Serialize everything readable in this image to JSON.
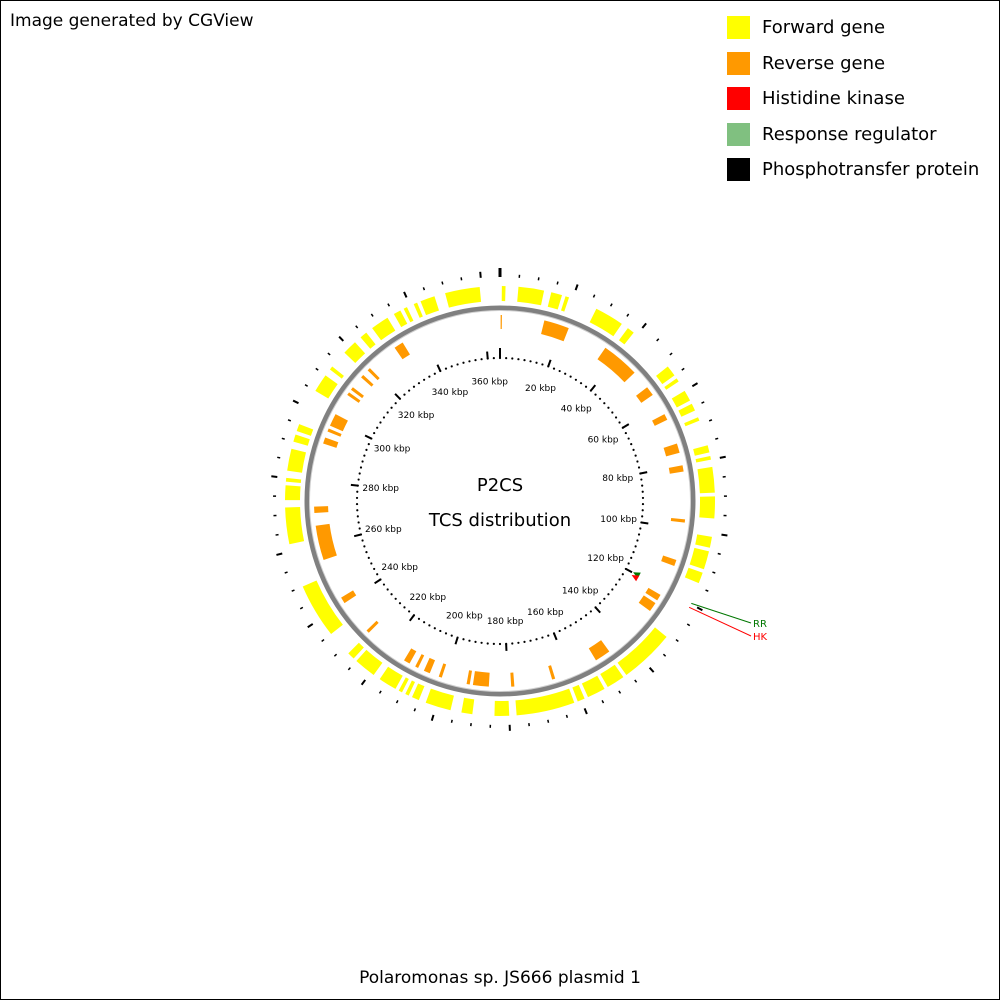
{
  "credit": "Image generated by CGView",
  "legend": [
    {
      "label": "Forward gene",
      "color": "#ffff00"
    },
    {
      "label": "Reverse gene",
      "color": "#ff9900"
    },
    {
      "label": "Histidine kinase",
      "color": "#ff0000"
    },
    {
      "label": "Response regulator",
      "color": "#80c080"
    },
    {
      "label": "Phosphotransfer protein",
      "color": "#000000"
    }
  ],
  "center": {
    "line1": "P2CS",
    "line2": "TCS distribution"
  },
  "genome_length_kbp": 365,
  "tick_labels": [
    "20 kbp",
    "40 kbp",
    "60 kbp",
    "80 kbp",
    "100 kbp",
    "120 kbp",
    "140 kbp",
    "160 kbp",
    "180 kbp",
    "200 kbp",
    "220 kbp",
    "240 kbp",
    "260 kbp",
    "280 kbp",
    "300 kbp",
    "320 kbp",
    "340 kbp",
    "360 kbp"
  ],
  "tick_values_kbp": [
    20,
    40,
    60,
    80,
    100,
    120,
    140,
    160,
    180,
    200,
    220,
    240,
    260,
    280,
    300,
    320,
    340,
    360
  ],
  "forward_genes_kbp": [
    [
      0.5,
      1.5
    ],
    [
      5,
      12
    ],
    [
      14,
      17
    ],
    [
      18,
      19
    ],
    [
      27,
      35
    ],
    [
      37,
      39
    ],
    [
      52,
      55
    ],
    [
      56,
      57
    ],
    [
      60,
      63
    ],
    [
      64,
      66
    ],
    [
      68,
      69
    ],
    [
      76,
      78
    ],
    [
      79,
      80
    ],
    [
      82,
      89
    ],
    [
      90,
      96
    ],
    [
      101,
      104
    ],
    [
      105,
      110
    ],
    [
      111,
      114
    ],
    [
      131,
      146
    ],
    [
      147,
      152
    ],
    [
      153,
      158
    ],
    [
      159,
      161
    ],
    [
      162,
      178
    ],
    [
      180,
      184
    ],
    [
      190,
      193
    ],
    [
      196,
      203
    ],
    [
      205,
      207
    ],
    [
      208,
      209
    ],
    [
      210,
      211
    ],
    [
      212,
      217
    ],
    [
      219,
      225
    ],
    [
      226,
      228
    ],
    [
      235,
      250
    ],
    [
      262,
      272
    ],
    [
      274,
      278
    ],
    [
      279,
      280
    ],
    [
      282,
      288
    ],
    [
      290,
      292
    ],
    [
      293,
      295
    ],
    [
      305,
      310
    ],
    [
      312,
      313
    ],
    [
      318,
      322
    ],
    [
      324,
      326
    ],
    [
      328,
      333
    ],
    [
      335,
      337
    ],
    [
      338,
      339
    ],
    [
      341,
      342
    ],
    [
      343,
      347
    ],
    [
      350,
      359.5
    ]
  ],
  "reverse_genes_kbp": [
    [
      0.2,
      0.6
    ],
    [
      14,
      22
    ],
    [
      35,
      47
    ],
    [
      53,
      56
    ],
    [
      63,
      65
    ],
    [
      73,
      76
    ],
    [
      80,
      82
    ],
    [
      97,
      98
    ],
    [
      110,
      112
    ],
    [
      122,
      124
    ],
    [
      125,
      128
    ],
    [
      146,
      151
    ],
    [
      165,
      166
    ],
    [
      178,
      179
    ],
    [
      186,
      191
    ],
    [
      192,
      193
    ],
    [
      201,
      202
    ],
    [
      205,
      207
    ],
    [
      209,
      210
    ],
    [
      212,
      214
    ],
    [
      228,
      229
    ],
    [
      240,
      242
    ],
    [
      255,
      266
    ],
    [
      270,
      272
    ],
    [
      292,
      294
    ],
    [
      296,
      297
    ],
    [
      298,
      302
    ],
    [
      309,
      310
    ],
    [
      311,
      312
    ],
    [
      316,
      317
    ],
    [
      319,
      320
    ],
    [
      330,
      333
    ]
  ],
  "tcs_genes": [
    {
      "label": "RR",
      "kbp": 119.8,
      "color": "#007700"
    },
    {
      "label": "HK",
      "kbp": 121.0,
      "color": "#ff0000"
    }
  ],
  "footer": "Polaromonas sp. JS666 plasmid 1"
}
